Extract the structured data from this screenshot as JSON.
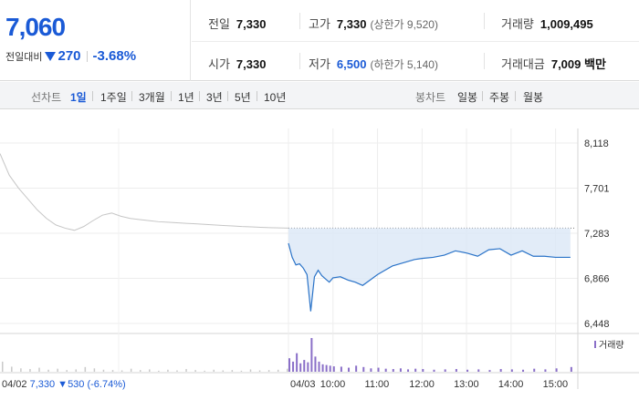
{
  "quote": {
    "price": "7,060",
    "change_label": "전일대비",
    "change_amount": "270",
    "change_percent": "-3.68%",
    "prev_close_label": "전일",
    "prev_close": "7,330",
    "open_label": "시가",
    "open": "7,330",
    "high_label": "고가",
    "high": "7,330",
    "upper_limit": "(상한가 9,520)",
    "low_label": "저가",
    "low": "6,500",
    "lower_limit": "(하한가 5,140)",
    "volume_label": "거래량",
    "volume": "1,009,495",
    "amount_label": "거래대금",
    "amount": "7,009 백만",
    "colors": {
      "down": "#1a5ad6"
    }
  },
  "toolbar": {
    "line_chart_label": "선차트",
    "periods": [
      "1일",
      "1주일",
      "3개월",
      "1년",
      "3년",
      "5년",
      "10년"
    ],
    "active_period": "1일",
    "candle_chart_label": "봉차트",
    "candles": [
      "일봉",
      "주봉",
      "월봉"
    ]
  },
  "chart_data": {
    "type": "line",
    "y_ticks": [
      "8,118",
      "7,701",
      "7,283",
      "6,866",
      "6,448"
    ],
    "ylim": [
      6448,
      8118
    ],
    "x_ticks": [
      "04/03",
      "10:00",
      "11:00",
      "12:00",
      "13:00",
      "14:00",
      "15:00"
    ],
    "prev_day_label": "04/02",
    "prev_day_close": "7,330",
    "prev_day_change": "530",
    "prev_day_change_pct": "(-6.74%)",
    "volume_legend": "거래량",
    "base_price": 7330,
    "prev_day_series": {
      "values": [
        8020,
        7820,
        7700,
        7600,
        7500,
        7420,
        7360,
        7330,
        7310,
        7345,
        7400,
        7450,
        7470,
        7440,
        7420,
        7410,
        7400,
        7390,
        7385,
        7380,
        7375,
        7370,
        7365,
        7360,
        7355,
        7350,
        7345,
        7342,
        7338,
        7335,
        7333,
        7330
      ]
    },
    "today_series": {
      "time": [
        "09:00",
        "09:05",
        "09:10",
        "09:15",
        "09:20",
        "09:25",
        "09:30",
        "09:35",
        "09:40",
        "09:45",
        "09:50",
        "09:55",
        "10:00",
        "10:10",
        "10:20",
        "10:30",
        "10:40",
        "10:50",
        "11:00",
        "11:10",
        "11:20",
        "11:30",
        "11:40",
        "11:50",
        "12:00",
        "12:15",
        "12:30",
        "12:45",
        "13:00",
        "13:15",
        "13:30",
        "13:45",
        "14:00",
        "14:15",
        "14:30",
        "14:45",
        "15:00",
        "15:20"
      ],
      "values": [
        7190,
        7060,
        6990,
        7000,
        6960,
        6900,
        6560,
        6880,
        6940,
        6890,
        6860,
        6830,
        6870,
        6880,
        6850,
        6830,
        6800,
        6850,
        6900,
        6940,
        6980,
        7000,
        7020,
        7040,
        7050,
        7060,
        7080,
        7120,
        7100,
        7070,
        7130,
        7140,
        7080,
        7120,
        7070,
        7070,
        7060,
        7060
      ]
    },
    "volume_max": 100,
    "volume_prev": [
      30,
      15,
      10,
      8,
      12,
      6,
      9,
      5,
      7,
      14,
      10,
      6,
      5,
      4,
      9,
      5,
      7,
      3,
      6,
      4,
      8,
      5,
      3,
      6,
      4,
      5,
      3,
      7,
      4,
      5,
      6,
      9
    ],
    "volume_today": [
      40,
      30,
      55,
      25,
      35,
      28,
      100,
      45,
      30,
      22,
      20,
      18,
      16,
      15,
      12,
      18,
      14,
      10,
      12,
      9,
      8,
      10,
      7,
      9,
      8,
      6,
      7,
      8,
      6,
      7,
      5,
      8,
      7,
      6,
      9,
      7,
      10,
      14
    ]
  }
}
